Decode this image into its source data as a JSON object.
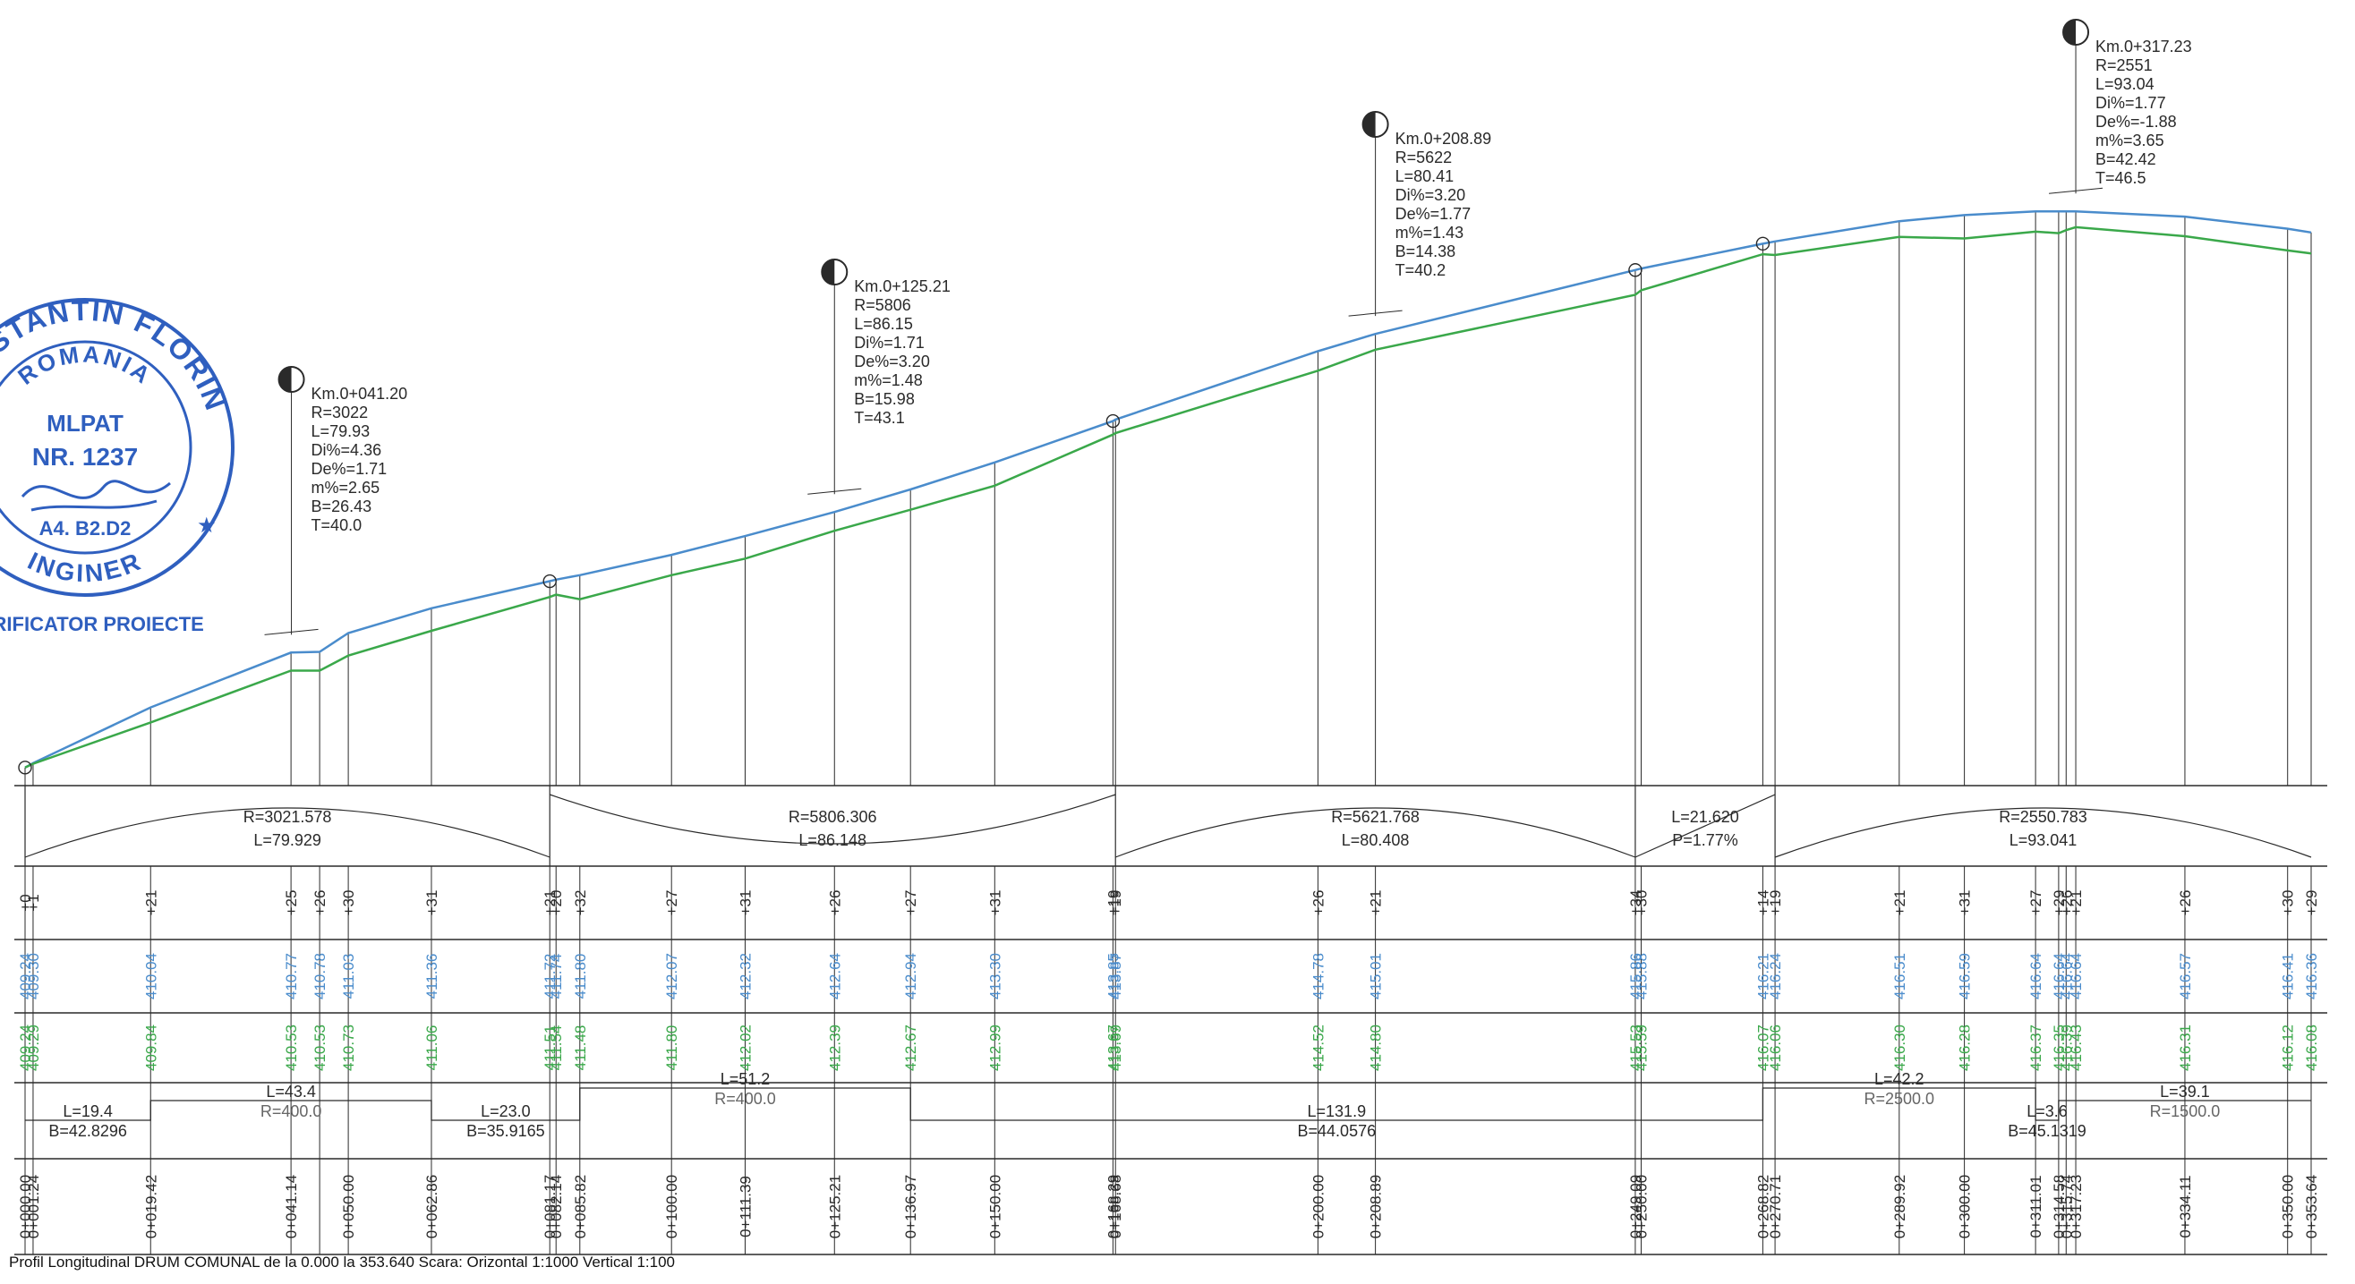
{
  "title": "Profil Longitudinal DRUM COMUNAL de la 0.000 la 353.640 Scara: Orizontal  1:1000 Vertical 1:100",
  "colors": {
    "project_line": "#4a8ccc",
    "terrain_line": "#3aa84a",
    "ink": "#2a2a2a",
    "stamp": "#2f5fbf"
  },
  "stamp": {
    "name": "CONSTANTIN FLORIN",
    "country": "ROMANIA",
    "authority": "MLPAT",
    "number": "NR. 1237",
    "grade": "A4. B2.D2",
    "title_word": "INGINER",
    "role": "VERIFICATOR PROIECTE"
  },
  "vertical_curves": [
    {
      "km": "Km.0+041.20",
      "lines": [
        "R=3022",
        "L=79.93",
        "Di%=4.36",
        "De%=1.71",
        "m%=2.65",
        "B=26.43",
        "T=40.0"
      ]
    },
    {
      "km": "Km.0+125.21",
      "lines": [
        "R=5806",
        "L=86.15",
        "Di%=1.71",
        "De%=3.20",
        "m%=1.48",
        "B=15.98",
        "T=43.1"
      ]
    },
    {
      "km": "Km.0+208.89",
      "lines": [
        "R=5622",
        "L=80.41",
        "Di%=3.20",
        "De%=1.77",
        "m%=1.43",
        "B=14.38",
        "T=40.2"
      ]
    },
    {
      "km": "Km.0+317.23",
      "lines": [
        "R=2551",
        "L=93.04",
        "Di%=1.77",
        "De%=-1.88",
        "m%=3.65",
        "B=42.42",
        "T=46.5"
      ]
    }
  ],
  "band_curves": [
    {
      "r": "R=3021.578",
      "l": "L=79.929"
    },
    {
      "r": "R=5806.306",
      "l": "L=86.148"
    },
    {
      "r": "R=5621.768",
      "l": "L=80.408"
    },
    {
      "r": "L=21.620",
      "l": "P=1.77%"
    },
    {
      "r": "R=2550.783",
      "l": "L=93.041"
    }
  ],
  "stations": [
    {
      "ch": "0+000.00",
      "dist": "+0",
      "proj": "409.24",
      "terr": "409.24"
    },
    {
      "ch": "0+001.24",
      "dist": "+1",
      "proj": "409.30",
      "terr": "409.29"
    },
    {
      "ch": "0+019.42",
      "dist": "+21",
      "proj": "410.04",
      "terr": "409.84"
    },
    {
      "ch": "0+041.14",
      "dist": "+25",
      "proj": "410.77",
      "terr": "410.53"
    },
    {
      "ch": "",
      "dist": "+26",
      "proj": "410.78",
      "terr": "410.53"
    },
    {
      "ch": "0+050.00",
      "dist": "+30",
      "proj": "411.03",
      "terr": "410.73"
    },
    {
      "ch": "0+062.86",
      "dist": "+31",
      "proj": "411.36",
      "terr": "411.06"
    },
    {
      "ch": "0+081.17",
      "dist": "+21",
      "proj": "411.72",
      "terr": "411.51"
    },
    {
      "ch": "0+082.14",
      "dist": "+20",
      "proj": "411.74",
      "terr": "411.54"
    },
    {
      "ch": "0+085.82",
      "dist": "+32",
      "proj": "411.80",
      "terr": "411.48"
    },
    {
      "ch": "0+100.00",
      "dist": "+27",
      "proj": "412.07",
      "terr": "411.80"
    },
    {
      "ch": "0+111.39",
      "dist": "+31",
      "proj": "412.32",
      "terr": "412.02"
    },
    {
      "ch": "0+125.21",
      "dist": "+26",
      "proj": "412.64",
      "terr": "412.39"
    },
    {
      "ch": "0+136.97",
      "dist": "+27",
      "proj": "412.94",
      "terr": "412.67"
    },
    {
      "ch": "0+150.00",
      "dist": "+31",
      "proj": "413.30",
      "terr": "412.99"
    },
    {
      "ch": "0+168.29",
      "dist": "+19",
      "proj": "413.85",
      "terr": "413.67"
    },
    {
      "ch": "0+168.68",
      "dist": "+19",
      "proj": "413.87",
      "terr": "413.69"
    },
    {
      "ch": "0+200.00",
      "dist": "+26",
      "proj": "414.78",
      "terr": "414.52"
    },
    {
      "ch": "0+208.89",
      "dist": "+21",
      "proj": "415.01",
      "terr": "414.80"
    },
    {
      "ch": "0+249.09",
      "dist": "+34",
      "proj": "415.86",
      "terr": "415.53"
    },
    {
      "ch": "0+250.00",
      "dist": "+30",
      "proj": "415.88",
      "terr": "415.59"
    },
    {
      "ch": "0+268.82",
      "dist": "+14",
      "proj": "416.21",
      "terr": "416.07"
    },
    {
      "ch": "0+270.71",
      "dist": "+19",
      "proj": "416.24",
      "terr": "416.06"
    },
    {
      "ch": "0+289.92",
      "dist": "+21",
      "proj": "416.51",
      "terr": "416.30"
    },
    {
      "ch": "0+300.00",
      "dist": "+31",
      "proj": "416.59",
      "terr": "416.28"
    },
    {
      "ch": "0+311.01",
      "dist": "+27",
      "proj": "416.64",
      "terr": "416.37"
    },
    {
      "ch": "0+314.58",
      "dist": "+29",
      "proj": "416.64",
      "terr": "416.35"
    },
    {
      "ch": "0+315.74",
      "dist": "+26",
      "proj": "416.64",
      "terr": "416.39"
    },
    {
      "ch": "0+317.23",
      "dist": "+21",
      "proj": "416.64",
      "terr": "416.43"
    },
    {
      "ch": "0+334.11",
      "dist": "+26",
      "proj": "416.57",
      "terr": "416.31"
    },
    {
      "ch": "0+350.00",
      "dist": "+30",
      "proj": "416.41",
      "terr": "416.12"
    },
    {
      "ch": "0+353.64",
      "dist": "+29",
      "proj": "416.36",
      "terr": "416.08"
    }
  ],
  "alignment": [
    {
      "l": "L=19.4",
      "b": "B=42.8296"
    },
    {
      "l": "L=43.4",
      "b": "R=400.0"
    },
    {
      "l": "L=23.0",
      "b": "B=35.9165"
    },
    {
      "l": "L=51.2",
      "b": "R=400.0"
    },
    {
      "l": "L=131.9",
      "b": "B=44.0576"
    },
    {
      "l": "L=42.2",
      "b": "R=2500.0"
    },
    {
      "l": "L=3.6",
      "b": "B=45.1319"
    },
    {
      "l": "L=39.1",
      "b": "R=1500.0"
    }
  ]
}
